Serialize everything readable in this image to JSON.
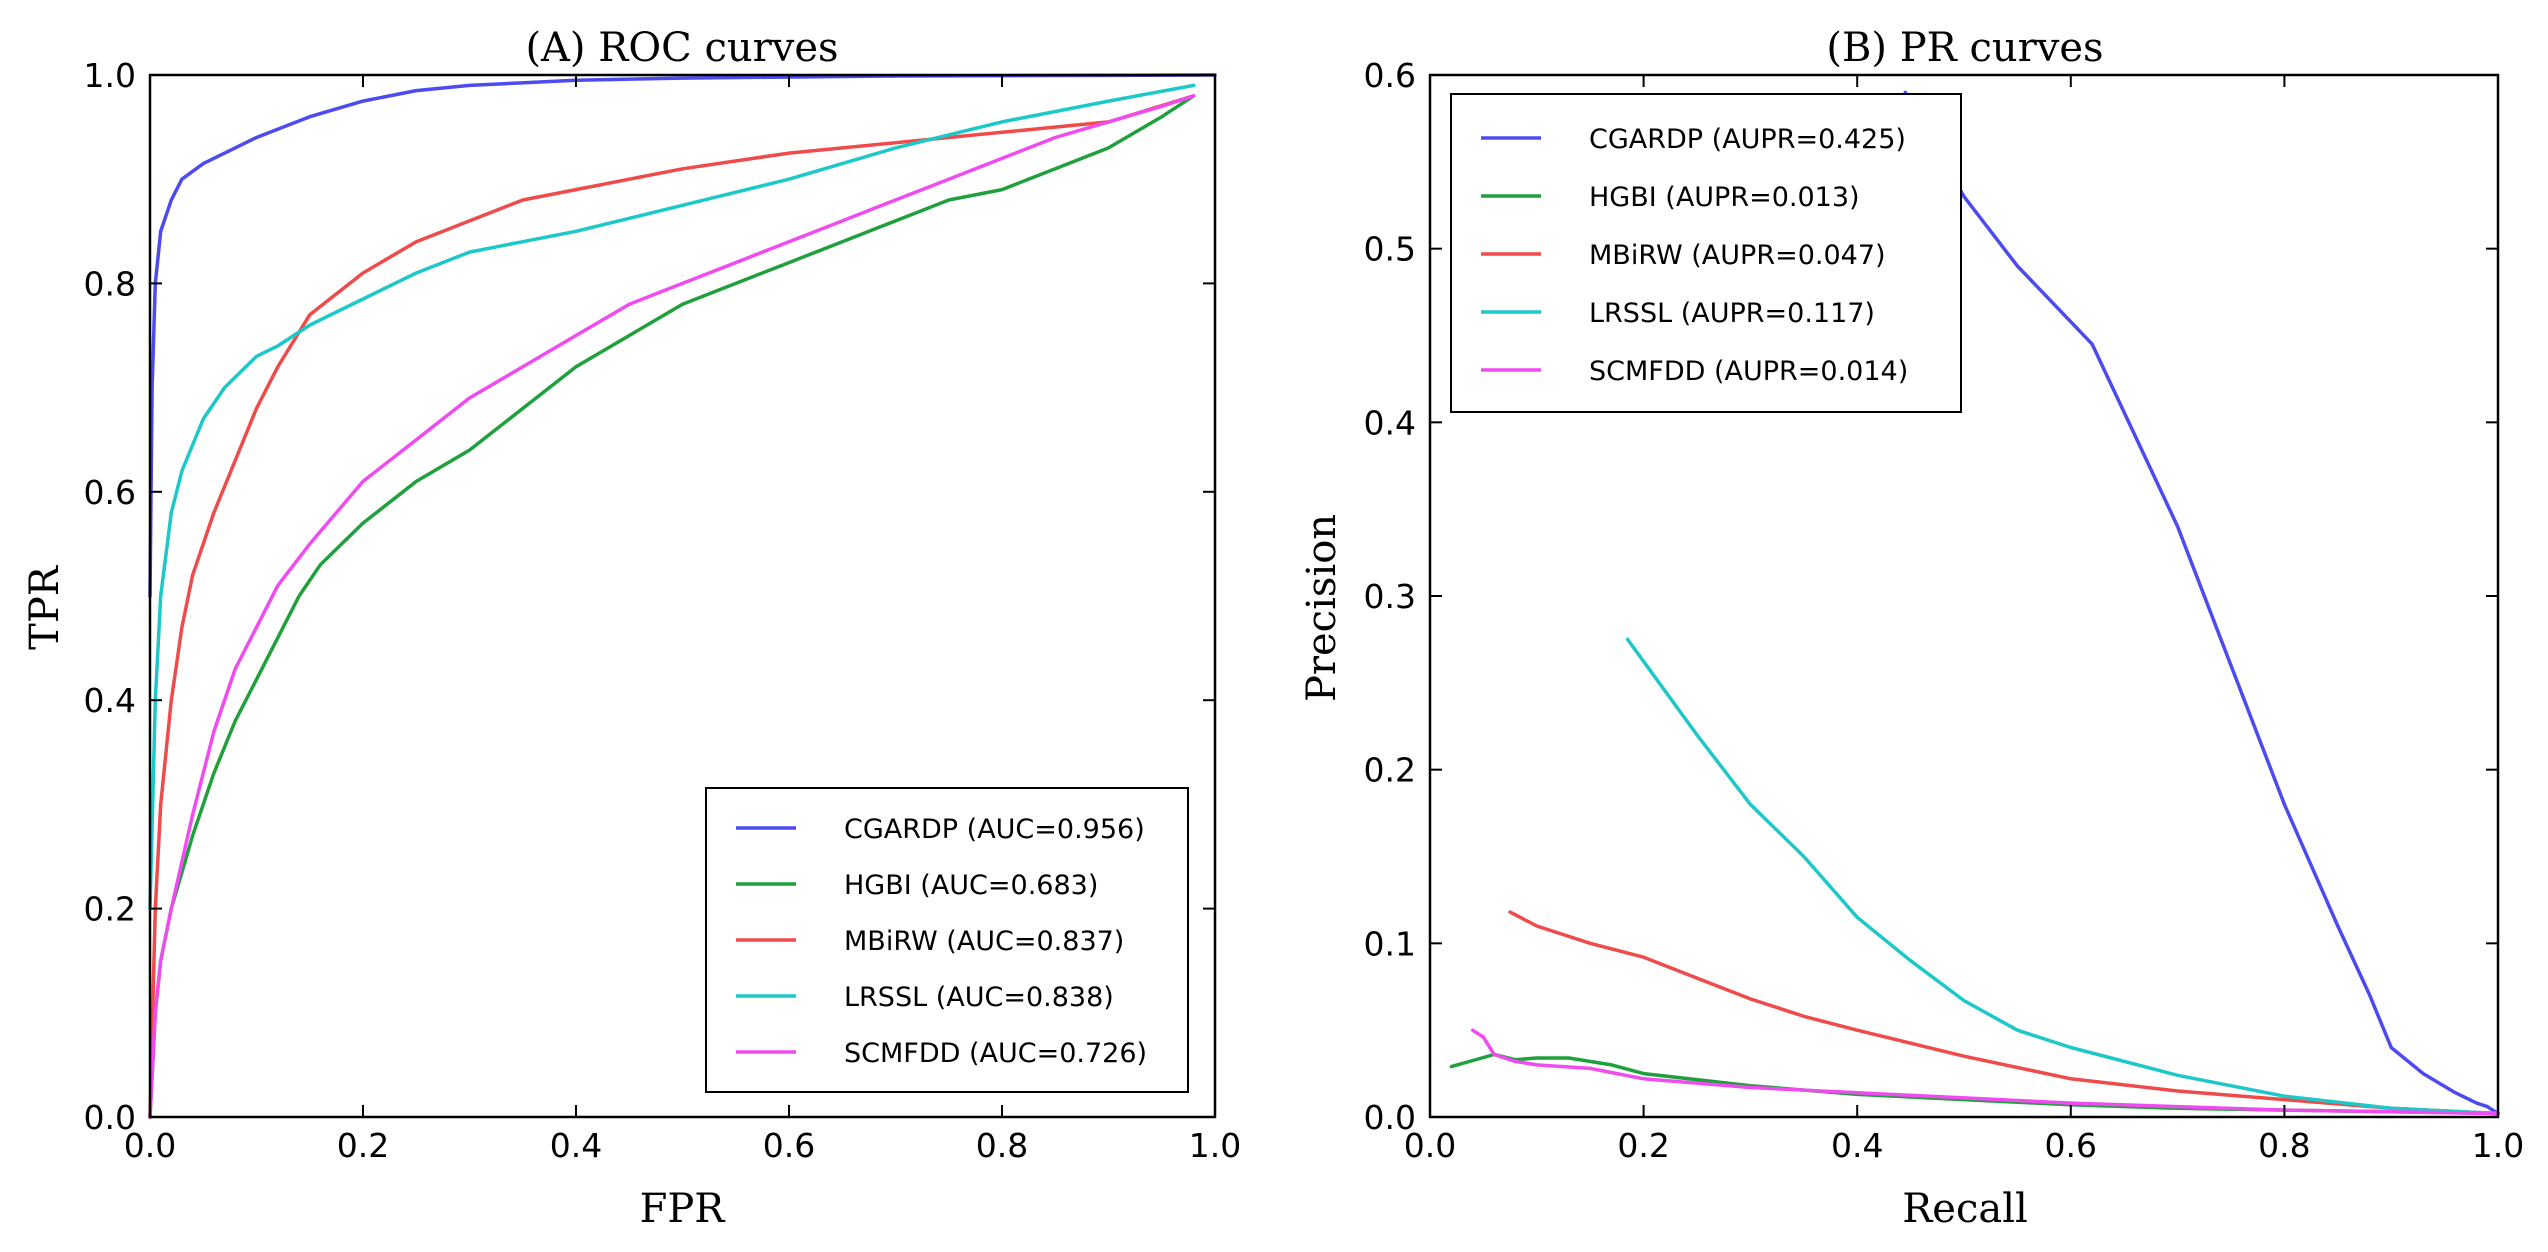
{
  "chart_data": [
    {
      "type": "line",
      "title": "(A) ROC curves",
      "xlabel": "FPR",
      "ylabel": "TPR",
      "xlim": [
        0,
        1
      ],
      "ylim": [
        0,
        1
      ],
      "xticks": [
        "0.0",
        "0.2",
        "0.4",
        "0.6",
        "0.8",
        "1.0"
      ],
      "yticks": [
        "0.0",
        "0.2",
        "0.4",
        "0.6",
        "0.8",
        "1.0"
      ],
      "legend_position": "bottom-right",
      "series": [
        {
          "name": "CGARDP (AUC=0.956)",
          "color": "#4b4bf0",
          "x": [
            0,
            0.002,
            0.005,
            0.01,
            0.02,
            0.03,
            0.05,
            0.08,
            0.1,
            0.15,
            0.2,
            0.25,
            0.3,
            0.4,
            0.5,
            0.7,
            1.0
          ],
          "y": [
            0.5,
            0.7,
            0.8,
            0.85,
            0.88,
            0.9,
            0.915,
            0.93,
            0.94,
            0.96,
            0.975,
            0.985,
            0.99,
            0.995,
            0.997,
            0.999,
            1.0
          ]
        },
        {
          "name": "HGBI (AUC=0.683)",
          "color": "#1fa03c",
          "x": [
            0,
            0.005,
            0.01,
            0.02,
            0.04,
            0.06,
            0.08,
            0.1,
            0.12,
            0.14,
            0.16,
            0.18,
            0.2,
            0.25,
            0.3,
            0.35,
            0.4,
            0.45,
            0.5,
            0.55,
            0.6,
            0.65,
            0.7,
            0.75,
            0.8,
            0.85,
            0.9,
            0.95,
            0.98
          ],
          "y": [
            0,
            0.1,
            0.15,
            0.2,
            0.27,
            0.33,
            0.38,
            0.42,
            0.46,
            0.5,
            0.53,
            0.55,
            0.57,
            0.61,
            0.64,
            0.68,
            0.72,
            0.75,
            0.78,
            0.8,
            0.82,
            0.84,
            0.86,
            0.88,
            0.89,
            0.91,
            0.93,
            0.96,
            0.98
          ]
        },
        {
          "name": "MBiRW (AUC=0.837)",
          "color": "#f04b4b",
          "x": [
            0,
            0.005,
            0.01,
            0.02,
            0.03,
            0.04,
            0.06,
            0.08,
            0.1,
            0.12,
            0.15,
            0.2,
            0.25,
            0.3,
            0.35,
            0.4,
            0.5,
            0.6,
            0.7,
            0.8,
            0.9,
            0.98
          ],
          "y": [
            0,
            0.2,
            0.3,
            0.4,
            0.47,
            0.52,
            0.58,
            0.63,
            0.68,
            0.72,
            0.77,
            0.81,
            0.84,
            0.86,
            0.88,
            0.89,
            0.91,
            0.925,
            0.935,
            0.945,
            0.955,
            0.98
          ]
        },
        {
          "name": "LRSSL (AUC=0.838)",
          "color": "#1cc8c8",
          "x": [
            0,
            0.005,
            0.01,
            0.02,
            0.03,
            0.05,
            0.07,
            0.1,
            0.12,
            0.15,
            0.2,
            0.25,
            0.3,
            0.35,
            0.4,
            0.5,
            0.6,
            0.7,
            0.8,
            0.9,
            0.98
          ],
          "y": [
            0.2,
            0.4,
            0.5,
            0.58,
            0.62,
            0.67,
            0.7,
            0.73,
            0.74,
            0.76,
            0.785,
            0.81,
            0.83,
            0.84,
            0.85,
            0.875,
            0.9,
            0.93,
            0.955,
            0.975,
            0.99
          ]
        },
        {
          "name": "SCMFDD (AUC=0.726)",
          "color": "#f04bf0",
          "x": [
            0,
            0.005,
            0.01,
            0.02,
            0.04,
            0.06,
            0.08,
            0.1,
            0.12,
            0.15,
            0.2,
            0.25,
            0.3,
            0.35,
            0.4,
            0.45,
            0.5,
            0.55,
            0.6,
            0.65,
            0.7,
            0.75,
            0.8,
            0.85,
            0.9,
            0.95,
            0.98
          ],
          "y": [
            0,
            0.1,
            0.15,
            0.2,
            0.29,
            0.37,
            0.43,
            0.47,
            0.51,
            0.55,
            0.61,
            0.65,
            0.69,
            0.72,
            0.75,
            0.78,
            0.8,
            0.82,
            0.84,
            0.86,
            0.88,
            0.9,
            0.92,
            0.94,
            0.955,
            0.97,
            0.98
          ]
        }
      ]
    },
    {
      "type": "line",
      "title": "(B) PR curves",
      "xlabel": "Recall",
      "ylabel": "Precision",
      "xlim": [
        0,
        1
      ],
      "ylim": [
        0,
        0.6
      ],
      "xticks": [
        "0.0",
        "0.2",
        "0.4",
        "0.6",
        "0.8",
        "1.0"
      ],
      "yticks": [
        "0.0",
        "0.1",
        "0.2",
        "0.3",
        "0.4",
        "0.5",
        "0.6"
      ],
      "legend_position": "top-left",
      "series": [
        {
          "name": "CGARDP (AUPR=0.425)",
          "color": "#4b4bf0",
          "x": [
            0.445,
            0.5,
            0.55,
            0.62,
            0.7,
            0.75,
            0.8,
            0.85,
            0.88,
            0.9,
            0.93,
            0.96,
            0.98,
            0.99,
            1.0
          ],
          "y": [
            0.59,
            0.53,
            0.49,
            0.445,
            0.34,
            0.26,
            0.18,
            0.11,
            0.07,
            0.04,
            0.025,
            0.014,
            0.008,
            0.006,
            0.002
          ]
        },
        {
          "name": "HGBI (AUPR=0.013)",
          "color": "#1fa03c",
          "x": [
            0.02,
            0.06,
            0.08,
            0.1,
            0.13,
            0.17,
            0.2,
            0.3,
            0.4,
            0.5,
            0.6,
            0.7,
            0.8,
            0.9,
            1.0
          ],
          "y": [
            0.029,
            0.036,
            0.033,
            0.034,
            0.034,
            0.03,
            0.025,
            0.018,
            0.013,
            0.01,
            0.007,
            0.005,
            0.004,
            0.003,
            0.002
          ]
        },
        {
          "name": "MBiRW (AUPR=0.047)",
          "color": "#f04b4b",
          "x": [
            0.075,
            0.1,
            0.15,
            0.2,
            0.25,
            0.3,
            0.35,
            0.4,
            0.5,
            0.6,
            0.7,
            0.8,
            0.9,
            1.0
          ],
          "y": [
            0.118,
            0.11,
            0.1,
            0.092,
            0.08,
            0.068,
            0.058,
            0.05,
            0.035,
            0.022,
            0.015,
            0.01,
            0.005,
            0.002
          ]
        },
        {
          "name": "LRSSL (AUPR=0.117)",
          "color": "#1cc8c8",
          "x": [
            0.185,
            0.25,
            0.3,
            0.35,
            0.4,
            0.45,
            0.5,
            0.55,
            0.6,
            0.7,
            0.8,
            0.9,
            1.0
          ],
          "y": [
            0.275,
            0.22,
            0.18,
            0.15,
            0.115,
            0.09,
            0.067,
            0.05,
            0.04,
            0.024,
            0.012,
            0.005,
            0.002
          ]
        },
        {
          "name": "SCMFDD (AUPR=0.014)",
          "color": "#f04bf0",
          "x": [
            0.04,
            0.05,
            0.06,
            0.08,
            0.1,
            0.15,
            0.2,
            0.3,
            0.4,
            0.5,
            0.6,
            0.7,
            0.8,
            0.9,
            1.0
          ],
          "y": [
            0.05,
            0.046,
            0.036,
            0.032,
            0.03,
            0.028,
            0.022,
            0.017,
            0.014,
            0.011,
            0.008,
            0.006,
            0.004,
            0.003,
            0.002
          ]
        }
      ]
    }
  ]
}
